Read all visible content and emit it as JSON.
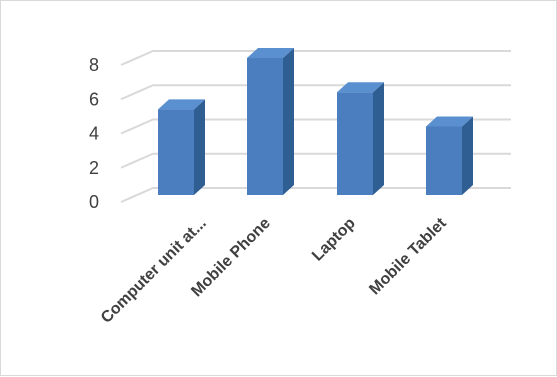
{
  "chart_data": {
    "type": "bar",
    "style": "3d-column",
    "categories": [
      "Computer unit at...",
      "Mobile Phone",
      "Laptop",
      "Mobile Tablet"
    ],
    "values": [
      5,
      8,
      6,
      4
    ],
    "ylim": [
      0,
      8
    ],
    "yticks": [
      0,
      2,
      4,
      6,
      8
    ],
    "grid": true,
    "legend": "none",
    "colors": {
      "bar_front": "#4a7ebf",
      "bar_side": "#2f5e93",
      "bar_top": "#5a8fd0",
      "grid": "#d9d9d9"
    }
  }
}
